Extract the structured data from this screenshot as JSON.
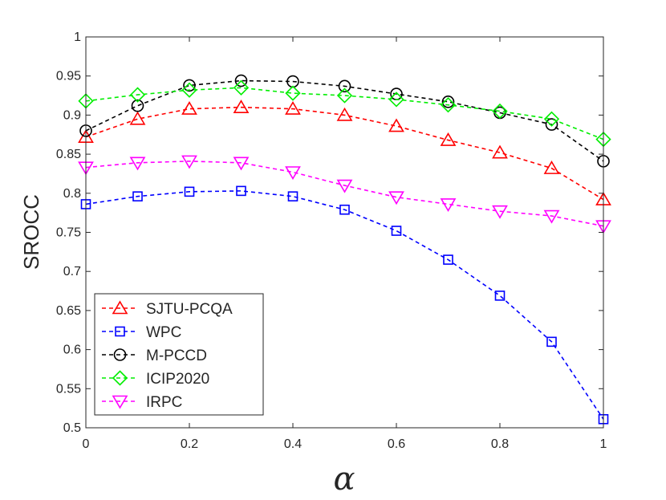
{
  "chart_data": {
    "type": "line",
    "title": "",
    "xlabel": "α",
    "ylabel": "SROCC",
    "x": [
      0,
      0.1,
      0.2,
      0.3,
      0.4,
      0.5,
      0.6,
      0.7,
      0.8,
      0.9,
      1
    ],
    "xlim": [
      0,
      1
    ],
    "ylim": [
      0.5,
      1
    ],
    "xticks": [
      0,
      0.2,
      0.4,
      0.6,
      0.8,
      1
    ],
    "xtick_labels": [
      "0",
      "0.2",
      "0.4",
      "0.6",
      "0.8",
      "1"
    ],
    "yticks": [
      0.5,
      0.55,
      0.6,
      0.65,
      0.7,
      0.75,
      0.8,
      0.85,
      0.9,
      0.95,
      1
    ],
    "ytick_labels": [
      "0.5",
      "0.55",
      "0.6",
      "0.65",
      "0.7",
      "0.75",
      "0.8",
      "0.85",
      "0.9",
      "0.95",
      "1"
    ],
    "grid": false,
    "legend_position": "bottom-left",
    "series": [
      {
        "name": "SJTU-PCQA",
        "color": "#ff0000",
        "marker": "triangle-up",
        "values": [
          0.872,
          0.895,
          0.908,
          0.91,
          0.908,
          0.9,
          0.886,
          0.868,
          0.852,
          0.832,
          0.792
        ]
      },
      {
        "name": "WPC",
        "color": "#0000ff",
        "marker": "square",
        "values": [
          0.786,
          0.796,
          0.802,
          0.803,
          0.796,
          0.779,
          0.752,
          0.715,
          0.669,
          0.61,
          0.511
        ]
      },
      {
        "name": "M-PCCD",
        "color": "#000000",
        "marker": "circle",
        "values": [
          0.88,
          0.912,
          0.938,
          0.944,
          0.943,
          0.937,
          0.927,
          0.917,
          0.903,
          0.888,
          0.841
        ]
      },
      {
        "name": "ICIP2020",
        "color": "#00ee00",
        "marker": "diamond",
        "values": [
          0.918,
          0.926,
          0.932,
          0.935,
          0.928,
          0.925,
          0.92,
          0.913,
          0.905,
          0.895,
          0.869
        ]
      },
      {
        "name": "IRPC",
        "color": "#ff00ff",
        "marker": "triangle-down",
        "values": [
          0.833,
          0.839,
          0.841,
          0.839,
          0.827,
          0.81,
          0.795,
          0.786,
          0.777,
          0.771,
          0.758
        ]
      }
    ]
  }
}
